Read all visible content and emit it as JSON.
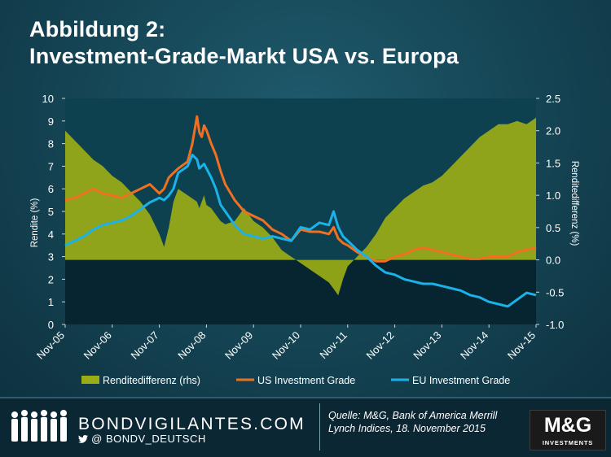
{
  "header": {
    "title_line1": "Abbildung 2:",
    "title_line2": "Investment-Grade-Markt USA vs. Europa"
  },
  "footer": {
    "brand": "BONDVIGILANTES.COM",
    "twitter_icon": "twitter-bird-icon",
    "at_symbol": "@",
    "handle": "BONDV_DEUTSCH",
    "source_line1": "Quelle: M&G, Bank of America Merrill",
    "source_line2": "Lynch Indices, 18. November 2015",
    "logo_text": "M&G",
    "logo_subtext": "INVESTMENTS"
  },
  "colors": {
    "spread_fill": "#9aad16",
    "us_line": "#f07022",
    "eu_line": "#1ab2e8",
    "plot_bg": "#0e4150"
  },
  "chart_data": {
    "type": "line",
    "title": "Investment-Grade-Markt USA vs. Europa",
    "x_labels": [
      "Nov-05",
      "Nov-06",
      "Nov-07",
      "Nov-08",
      "Nov-09",
      "Nov-10",
      "Nov-11",
      "Nov-12",
      "Nov-13",
      "Nov-14",
      "Nov-15"
    ],
    "x": [
      2005.9,
      2006.1,
      2006.3,
      2006.5,
      2006.7,
      2006.9,
      2007.1,
      2007.3,
      2007.5,
      2007.7,
      2007.9,
      2008.0,
      2008.1,
      2008.2,
      2008.3,
      2008.5,
      2008.6,
      2008.7,
      2008.75,
      2008.8,
      2008.85,
      2008.9,
      2009.0,
      2009.1,
      2009.2,
      2009.3,
      2009.5,
      2009.7,
      2009.9,
      2010.1,
      2010.3,
      2010.5,
      2010.7,
      2010.9,
      2011.1,
      2011.3,
      2011.5,
      2011.6,
      2011.7,
      2011.8,
      2011.9,
      2012.1,
      2012.3,
      2012.5,
      2012.7,
      2012.9,
      2013.1,
      2013.3,
      2013.5,
      2013.7,
      2013.9,
      2014.1,
      2014.3,
      2014.5,
      2014.7,
      2014.9,
      2015.1,
      2015.3,
      2015.5,
      2015.7,
      2015.9
    ],
    "ylabel_left": "Rendite (%)",
    "ylabel_right": "Renditedifferenz (%)",
    "ylim_left": [
      0,
      10
    ],
    "ylim_right": [
      -1.0,
      2.5
    ],
    "yticks_left": [
      "0",
      "1",
      "2",
      "3",
      "4",
      "5",
      "6",
      "7",
      "8",
      "9",
      "10"
    ],
    "yticks_right": [
      "-1.0",
      "-0.5",
      "0.0",
      "0.5",
      "1.0",
      "1.5",
      "2.0",
      "2.5"
    ],
    "series": [
      {
        "name": "Renditedifferenz (rhs)",
        "axis": "right",
        "type": "area",
        "values": [
          2.0,
          1.85,
          1.7,
          1.55,
          1.45,
          1.3,
          1.2,
          1.05,
          0.9,
          0.7,
          0.4,
          0.2,
          0.5,
          0.9,
          1.1,
          1.0,
          0.95,
          0.9,
          0.8,
          0.9,
          1.0,
          0.85,
          0.8,
          0.7,
          0.6,
          0.55,
          0.6,
          0.8,
          0.6,
          0.5,
          0.35,
          0.15,
          0.05,
          -0.05,
          -0.15,
          -0.25,
          -0.35,
          -0.45,
          -0.55,
          -0.3,
          -0.1,
          0.05,
          0.2,
          0.4,
          0.65,
          0.8,
          0.95,
          1.05,
          1.15,
          1.2,
          1.3,
          1.45,
          1.6,
          1.75,
          1.9,
          2.0,
          2.1,
          2.1,
          2.15,
          2.1,
          2.2
        ]
      },
      {
        "name": "US Investment Grade",
        "axis": "left",
        "type": "line",
        "values": [
          5.5,
          5.6,
          5.8,
          6.0,
          5.8,
          5.7,
          5.6,
          5.8,
          6.0,
          6.2,
          5.8,
          6.0,
          6.5,
          6.7,
          6.9,
          7.2,
          8.0,
          9.2,
          8.5,
          8.3,
          8.8,
          8.6,
          8.0,
          7.5,
          6.8,
          6.2,
          5.5,
          5.0,
          4.8,
          4.6,
          4.2,
          4.0,
          3.7,
          4.2,
          4.1,
          4.1,
          4.0,
          4.3,
          3.8,
          3.6,
          3.5,
          3.2,
          3.0,
          2.8,
          2.8,
          3.0,
          3.1,
          3.3,
          3.4,
          3.3,
          3.2,
          3.1,
          3.0,
          2.9,
          2.9,
          3.0,
          3.0,
          3.0,
          3.2,
          3.3,
          3.4
        ]
      },
      {
        "name": "EU Investment Grade",
        "axis": "left",
        "type": "line",
        "values": [
          3.5,
          3.7,
          3.9,
          4.2,
          4.4,
          4.5,
          4.6,
          4.8,
          5.1,
          5.4,
          5.6,
          5.5,
          5.7,
          6.0,
          6.7,
          7.0,
          7.5,
          7.3,
          6.9,
          7.0,
          7.1,
          6.9,
          6.5,
          6.0,
          5.3,
          5.0,
          4.4,
          4.0,
          3.9,
          3.8,
          3.9,
          3.8,
          3.7,
          4.3,
          4.2,
          4.5,
          4.4,
          5.0,
          4.3,
          3.9,
          3.7,
          3.3,
          3.0,
          2.6,
          2.3,
          2.2,
          2.0,
          1.9,
          1.8,
          1.8,
          1.7,
          1.6,
          1.5,
          1.3,
          1.2,
          1.0,
          0.9,
          0.8,
          1.1,
          1.4,
          1.3
        ]
      }
    ],
    "legend": [
      "Renditedifferenz (rhs)",
      "US Investment Grade",
      "EU Investment Grade"
    ],
    "legend_position": "bottom"
  }
}
